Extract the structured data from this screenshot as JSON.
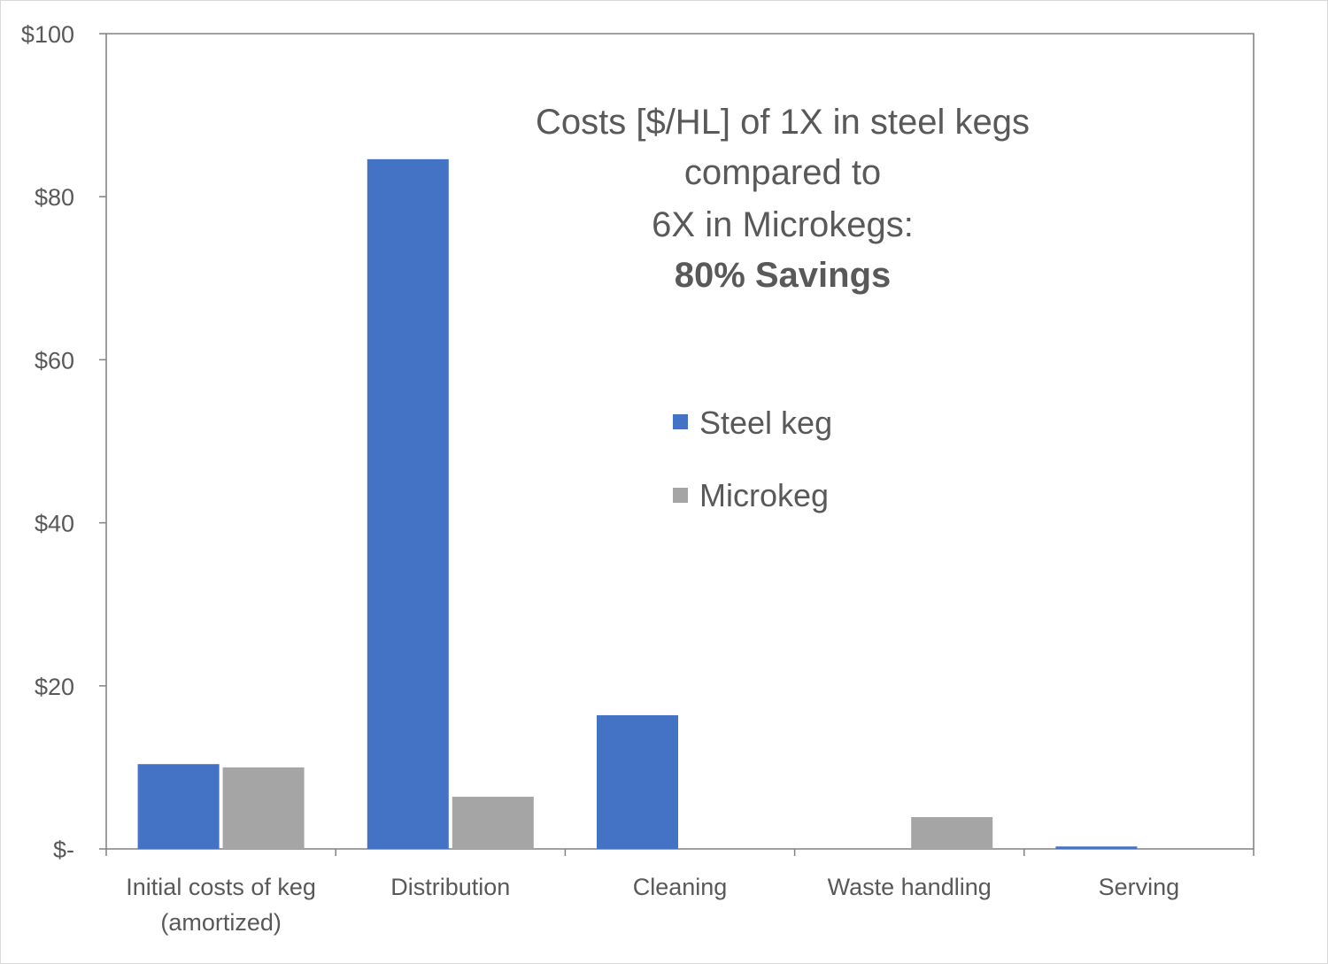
{
  "chart_data": {
    "type": "bar",
    "title_lines": [
      "Costs [$/HL] of 1X in steel kegs",
      "compared to",
      "6X in  Microkegs:",
      "80% Savings"
    ],
    "categories": [
      [
        "Initial costs of keg",
        "(amortized)"
      ],
      [
        "Distribution"
      ],
      [
        "Cleaning"
      ],
      [
        "Waste handling"
      ],
      [
        "Serving"
      ]
    ],
    "series": [
      {
        "name": "Steel keg",
        "color": "#4472c4",
        "values": [
          10.4,
          84.6,
          16.4,
          0,
          0.3
        ]
      },
      {
        "name": "Microkeg",
        "color": "#a5a5a5",
        "values": [
          10.0,
          6.4,
          0,
          3.9,
          0
        ]
      }
    ],
    "ylim": [
      0,
      100
    ],
    "yticks": [
      0,
      20,
      40,
      60,
      80,
      100
    ],
    "ytick_labels": [
      "$-",
      "$20",
      "$40",
      "$60",
      "$80",
      "$100"
    ],
    "xlabel": "",
    "ylabel": "",
    "legend_position": "inside-center",
    "grid": false
  }
}
